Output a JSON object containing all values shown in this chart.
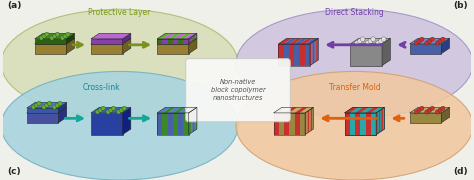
{
  "bg_color": "#f0f0eb",
  "ellipse_a_color": "#d8ddb8",
  "ellipse_a_edge": "#b0b870",
  "ellipse_b_color": "#cec4e0",
  "ellipse_b_edge": "#a090c8",
  "ellipse_c_color": "#a8d4de",
  "ellipse_c_edge": "#70b0c0",
  "ellipse_d_color": "#f0c8a0",
  "ellipse_d_edge": "#d0a070",
  "label_a": "(a)",
  "label_b": "(b)",
  "label_c": "(c)",
  "label_d": "(d)",
  "title_a": "Protective Layer",
  "title_b": "Direct Stacking",
  "title_c": "Cross-link",
  "title_d": "Transfer Mold",
  "center_text": "Non-native\nblock copolymer\nnanostructures",
  "arrow_ab": "#7040a0",
  "arrow_cd": "#e06010",
  "arrow_a": "#7a9020",
  "arrow_c": "#10a898",
  "green_bright": "#60b030",
  "green_dark": "#3a7020",
  "green_side": "#285018",
  "purple_top": "#b868d0",
  "purple_front": "#8840a8",
  "purple_side": "#602888",
  "red_dot": "#cc3030",
  "blue_top": "#7888c8",
  "blue_front": "#4860a8",
  "blue_side": "#284080",
  "gray_top": "#b0b0b0",
  "gray_front": "#888888",
  "gray_side": "#606060",
  "cyan_top": "#28b8b8",
  "cyan_front": "#189898",
  "cyan_side": "#087070",
  "tan_top": "#c0b060",
  "tan_front": "#988840",
  "tan_side": "#706030",
  "darkbrown_top": "#706050",
  "darkbrown_front": "#504030",
  "darkbrown_side": "#302010",
  "stripe_red": "#c83030",
  "stripe_blue": "#4860a8",
  "stripe_green": "#3a8828",
  "stripe_purple": "#a850c0",
  "stripe_cyan": "#28a8a8"
}
